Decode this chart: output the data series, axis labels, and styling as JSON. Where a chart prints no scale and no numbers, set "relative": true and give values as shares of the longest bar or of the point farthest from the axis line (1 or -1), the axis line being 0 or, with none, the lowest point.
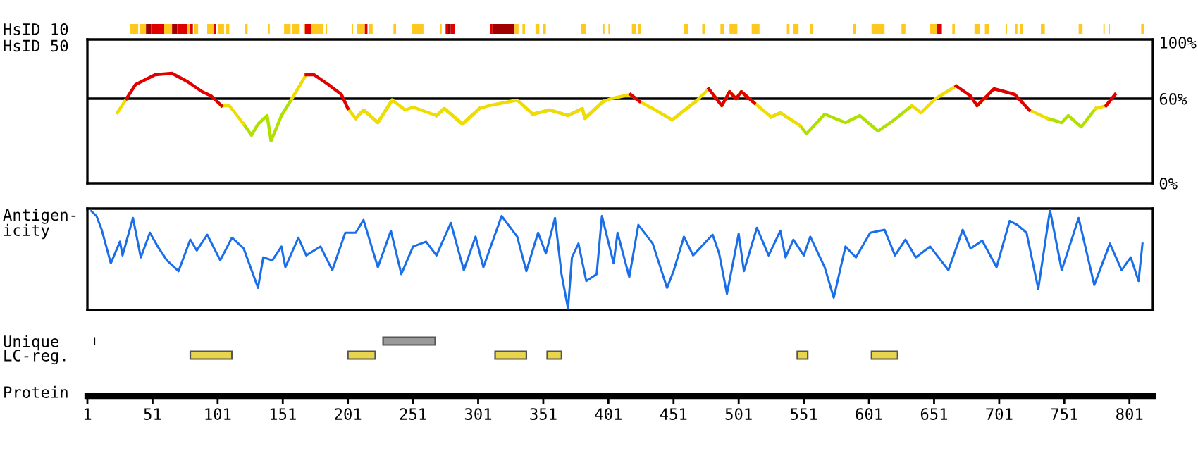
{
  "chart_data": [
    {
      "type": "bar",
      "orientation": "horizontal",
      "categories": [
        "HsID 10"
      ],
      "xlim": [
        1,
        819
      ],
      "tick_labels": "y",
      "series": [
        {
          "color": "#ffc81e",
          "base": [
            34
          ],
          "values": [
            6
          ]
        },
        {
          "color": "#ffc81e",
          "base": [
            41
          ],
          "values": [
            5
          ]
        },
        {
          "color": "#a00000",
          "base": [
            46
          ],
          "values": [
            4
          ]
        },
        {
          "color": "#e00000",
          "base": [
            50
          ],
          "values": [
            10
          ]
        },
        {
          "color": "#ffc81e",
          "base": [
            60
          ],
          "values": [
            6
          ]
        },
        {
          "color": "#a00000",
          "base": [
            66
          ],
          "values": [
            4
          ]
        },
        {
          "color": "#e00000",
          "base": [
            70
          ],
          "values": [
            8
          ]
        },
        {
          "color": "#ffc81e",
          "base": [
            78
          ],
          "values": [
            2
          ]
        },
        {
          "color": "#e00000",
          "base": [
            80
          ],
          "values": [
            2
          ]
        },
        {
          "color": "#ffc81e",
          "base": [
            83
          ],
          "values": [
            3
          ]
        },
        {
          "color": "#ffc81e",
          "base": [
            93
          ],
          "values": [
            5
          ]
        },
        {
          "color": "#e00000",
          "base": [
            98
          ],
          "values": [
            2
          ]
        },
        {
          "color": "#ffc81e",
          "base": [
            101
          ],
          "values": [
            5
          ]
        },
        {
          "color": "#ffc81e",
          "base": [
            107
          ],
          "values": [
            3
          ]
        },
        {
          "color": "#ffc81e",
          "base": [
            122
          ],
          "values": [
            2
          ]
        },
        {
          "color": "#ffc81e",
          "base": [
            140
          ],
          "values": [
            1
          ]
        },
        {
          "color": "#ffc81e",
          "base": [
            152
          ],
          "values": [
            5
          ]
        },
        {
          "color": "#ffc81e",
          "base": [
            158
          ],
          "values": [
            6
          ]
        },
        {
          "color": "#ffc81e",
          "base": [
            167
          ],
          "values": [
            1
          ]
        },
        {
          "color": "#e00000",
          "base": [
            168
          ],
          "values": [
            5
          ]
        },
        {
          "color": "#ffc81e",
          "base": [
            173
          ],
          "values": [
            9
          ]
        },
        {
          "color": "#ffc81e",
          "base": [
            184
          ],
          "values": [
            1
          ]
        },
        {
          "color": "#ffc81e",
          "base": [
            204
          ],
          "values": [
            1
          ]
        },
        {
          "color": "#ffc81e",
          "base": [
            208
          ],
          "values": [
            6
          ]
        },
        {
          "color": "#e00000",
          "base": [
            214
          ],
          "values": [
            2
          ]
        },
        {
          "color": "#ffc81e",
          "base": [
            217
          ],
          "values": [
            3
          ]
        },
        {
          "color": "#ffc81e",
          "base": [
            236
          ],
          "values": [
            2
          ]
        },
        {
          "color": "#ffc81e",
          "base": [
            250
          ],
          "values": [
            9
          ]
        },
        {
          "color": "#ffc81e",
          "base": [
            272
          ],
          "values": [
            1
          ]
        },
        {
          "color": "#e00000",
          "base": [
            276
          ],
          "values": [
            2
          ]
        },
        {
          "color": "#a00000",
          "base": [
            278
          ],
          "values": [
            2
          ]
        },
        {
          "color": "#e00000",
          "base": [
            280
          ],
          "values": [
            3
          ]
        },
        {
          "color": "#e00000",
          "base": [
            310
          ],
          "values": [
            2
          ]
        },
        {
          "color": "#a00000",
          "base": [
            312
          ],
          "values": [
            17
          ]
        },
        {
          "color": "#ffc81e",
          "base": [
            329
          ],
          "values": [
            3
          ]
        },
        {
          "color": "#ffc81e",
          "base": [
            335
          ],
          "values": [
            2
          ]
        },
        {
          "color": "#ffc81e",
          "base": [
            345
          ],
          "values": [
            3
          ]
        },
        {
          "color": "#ffc81e",
          "base": [
            351
          ],
          "values": [
            2
          ]
        },
        {
          "color": "#ffc81e",
          "base": [
            380
          ],
          "values": [
            4
          ]
        },
        {
          "color": "#ffc81e",
          "base": [
            397
          ],
          "values": [
            1
          ]
        },
        {
          "color": "#ffc81e",
          "base": [
            401
          ],
          "values": [
            1
          ]
        },
        {
          "color": "#ffc81e",
          "base": [
            419
          ],
          "values": [
            3
          ]
        },
        {
          "color": "#ffc81e",
          "base": [
            424
          ],
          "values": [
            2
          ]
        },
        {
          "color": "#ffc81e",
          "base": [
            459
          ],
          "values": [
            3
          ]
        },
        {
          "color": "#ffc81e",
          "base": [
            473
          ],
          "values": [
            2
          ]
        },
        {
          "color": "#ffc81e",
          "base": [
            487
          ],
          "values": [
            3
          ]
        },
        {
          "color": "#ffc81e",
          "base": [
            494
          ],
          "values": [
            6
          ]
        },
        {
          "color": "#ffc81e",
          "base": [
            511
          ],
          "values": [
            6
          ]
        },
        {
          "color": "#ffc81e",
          "base": [
            538
          ],
          "values": [
            2
          ]
        },
        {
          "color": "#ffc81e",
          "base": [
            543
          ],
          "values": [
            4
          ]
        },
        {
          "color": "#ffc81e",
          "base": [
            556
          ],
          "values": [
            2
          ]
        },
        {
          "color": "#ffc81e",
          "base": [
            589
          ],
          "values": [
            2
          ]
        },
        {
          "color": "#ffc81e",
          "base": [
            603
          ],
          "values": [
            10
          ]
        },
        {
          "color": "#ffc81e",
          "base": [
            626
          ],
          "values": [
            3
          ]
        },
        {
          "color": "#ffc81e",
          "base": [
            648
          ],
          "values": [
            5
          ]
        },
        {
          "color": "#e00000",
          "base": [
            653
          ],
          "values": [
            4
          ]
        },
        {
          "color": "#ffc81e",
          "base": [
            665
          ],
          "values": [
            2
          ]
        },
        {
          "color": "#ffc81e",
          "base": [
            682
          ],
          "values": [
            4
          ]
        },
        {
          "color": "#ffc81e",
          "base": [
            690
          ],
          "values": [
            3
          ]
        },
        {
          "color": "#ffc81e",
          "base": [
            706
          ],
          "values": [
            1
          ]
        },
        {
          "color": "#ffc81e",
          "base": [
            713
          ],
          "values": [
            2
          ]
        },
        {
          "color": "#ffc81e",
          "base": [
            717
          ],
          "values": [
            2
          ]
        },
        {
          "color": "#ffc81e",
          "base": [
            733
          ],
          "values": [
            3
          ]
        },
        {
          "color": "#ffc81e",
          "base": [
            762
          ],
          "values": [
            3
          ]
        },
        {
          "color": "#ffc81e",
          "base": [
            781
          ],
          "values": [
            1
          ]
        },
        {
          "color": "#ffc81e",
          "base": [
            785
          ],
          "values": [
            1
          ]
        },
        {
          "color": "#ffc81e",
          "base": [
            810
          ],
          "values": [
            2
          ]
        }
      ]
    },
    {
      "type": "line",
      "ylabel": "HsID 50",
      "xlim": [
        1,
        819
      ],
      "ylim": [
        0,
        102
      ],
      "yticks": [
        {
          "value": 0,
          "label": "0%"
        },
        {
          "value": 60,
          "label": "60%"
        },
        {
          "value": 100,
          "label": "100%"
        }
      ],
      "tick_labels": "y",
      "ref_lines": [
        {
          "axis": "y",
          "value": 60,
          "color": "#000000"
        }
      ],
      "x": [
        24,
        31,
        38,
        53,
        66,
        78,
        89,
        96,
        104,
        110,
        121,
        127,
        132,
        139,
        142,
        150,
        158,
        169,
        175,
        186,
        196,
        201,
        207,
        213,
        224,
        235,
        245,
        251,
        269,
        275,
        289,
        302,
        309,
        331,
        343,
        356,
        370,
        381,
        383,
        397,
        403,
        418,
        425,
        435,
        450,
        468,
        478,
        488,
        494,
        499,
        503,
        513,
        526,
        533,
        548,
        553,
        567,
        583,
        594,
        608,
        619,
        634,
        641,
        652,
        668,
        679,
        684,
        697,
        713,
        724,
        738,
        749,
        754,
        764,
        775,
        783,
        790
      ],
      "series": [
        {
          "color": "#e00000",
          "values": [
            null,
            60,
            70,
            77,
            78,
            72,
            65,
            62,
            55,
            null,
            null,
            null,
            null,
            null,
            null,
            null,
            null,
            77,
            77,
            70,
            63,
            53,
            null,
            null,
            null,
            null,
            null,
            null,
            null,
            null,
            null,
            null,
            null,
            null,
            null,
            null,
            null,
            null,
            null,
            null,
            null,
            63,
            58,
            null,
            null,
            null,
            67,
            55,
            65,
            60,
            65,
            57,
            null,
            null,
            null,
            null,
            null,
            null,
            null,
            null,
            null,
            null,
            null,
            null,
            69,
            62,
            55,
            67,
            63,
            52,
            null,
            null,
            null,
            null,
            null,
            55,
            63
          ]
        },
        {
          "color": "#f0dc00",
          "values": [
            50,
            60,
            null,
            null,
            null,
            null,
            null,
            null,
            55,
            55,
            42,
            null,
            null,
            null,
            null,
            null,
            60,
            77,
            null,
            null,
            null,
            53,
            46,
            52,
            43,
            59,
            52,
            54,
            48,
            53,
            42,
            53,
            55,
            59,
            49,
            52,
            48,
            53,
            46,
            58,
            60,
            63,
            58,
            53,
            45,
            58,
            67,
            55,
            65,
            60,
            65,
            57,
            47,
            50,
            41,
            null,
            null,
            null,
            null,
            null,
            null,
            55,
            50,
            60,
            69,
            null,
            55,
            67,
            null,
            52,
            46,
            null,
            null,
            null,
            53,
            55,
            null
          ]
        },
        {
          "color": "#b0e000",
          "values": [
            null,
            null,
            null,
            null,
            null,
            null,
            null,
            null,
            null,
            null,
            42,
            34,
            42,
            48,
            30,
            48,
            60,
            null,
            null,
            null,
            null,
            null,
            46,
            52,
            43,
            59,
            null,
            null,
            48,
            53,
            42,
            53,
            null,
            null,
            49,
            52,
            48,
            53,
            46,
            58,
            null,
            null,
            null,
            null,
            45,
            58,
            null,
            null,
            null,
            null,
            null,
            null,
            47,
            50,
            41,
            35,
            49,
            43,
            48,
            37,
            44,
            55,
            null,
            null,
            null,
            null,
            null,
            null,
            null,
            null,
            46,
            43,
            48,
            40,
            53,
            null,
            null
          ]
        }
      ]
    },
    {
      "type": "line",
      "ylabel": "Antigen-\nicity",
      "xlim": [
        1,
        819
      ],
      "relative": true,
      "tick_labels": false,
      "series": [
        {
          "color": "#1a6ee8",
          "x": [
            4,
            8,
            12,
            19,
            26,
            28,
            36,
            42,
            49,
            55,
            62,
            71,
            80,
            85,
            93,
            103,
            112,
            121,
            132,
            136,
            143,
            150,
            153,
            163,
            169,
            180,
            189,
            199,
            207,
            213,
            224,
            234,
            242,
            251,
            261,
            269,
            280,
            290,
            299,
            305,
            319,
            331,
            338,
            347,
            353,
            360,
            365,
            370,
            373,
            378,
            384,
            392,
            396,
            405,
            408,
            417,
            424,
            435,
            446,
            451,
            459,
            466,
            481,
            486,
            492,
            501,
            505,
            515,
            524,
            533,
            537,
            543,
            551,
            556,
            567,
            574,
            583,
            591,
            602,
            613,
            621,
            629,
            637,
            648,
            662,
            673,
            679,
            688,
            699,
            709,
            715,
            722,
            731,
            740,
            749,
            762,
            774,
            786,
            795,
            802,
            808,
            811
          ],
          "values": [
            0.99,
            0.94,
            0.8,
            0.46,
            0.68,
            0.54,
            0.92,
            0.52,
            0.77,
            0.63,
            0.49,
            0.38,
            0.7,
            0.59,
            0.75,
            0.49,
            0.72,
            0.61,
            0.21,
            0.52,
            0.49,
            0.63,
            0.42,
            0.72,
            0.54,
            0.63,
            0.39,
            0.77,
            0.77,
            0.9,
            0.42,
            0.79,
            0.35,
            0.63,
            0.68,
            0.54,
            0.87,
            0.39,
            0.73,
            0.42,
            0.94,
            0.73,
            0.38,
            0.77,
            0.56,
            0.92,
            0.35,
            0,
            0.52,
            0.66,
            0.28,
            0.35,
            0.94,
            0.46,
            0.77,
            0.32,
            0.85,
            0.66,
            0.21,
            0.38,
            0.73,
            0.54,
            0.75,
            0.56,
            0.15,
            0.76,
            0.38,
            0.82,
            0.54,
            0.79,
            0.52,
            0.7,
            0.54,
            0.73,
            0.42,
            0.11,
            0.63,
            0.52,
            0.77,
            0.8,
            0.54,
            0.7,
            0.52,
            0.63,
            0.39,
            0.8,
            0.61,
            0.69,
            0.42,
            0.89,
            0.85,
            0.77,
            0.2,
            1,
            0.39,
            0.92,
            0.24,
            0.66,
            0.39,
            0.52,
            0.28,
            0.66
          ]
        }
      ]
    },
    {
      "type": "bar",
      "orientation": "horizontal",
      "categories": [
        "Unique",
        "LC-reg."
      ],
      "xlabel": "Protein",
      "xlim": [
        1,
        819
      ],
      "xticks": [
        1,
        51,
        101,
        151,
        201,
        251,
        301,
        351,
        401,
        451,
        501,
        551,
        601,
        651,
        701,
        751,
        801
      ],
      "series": [
        {
          "color": "#000000",
          "base": [
            6,
            null
          ],
          "values": [
            1,
            null
          ]
        },
        {
          "color": "#999999",
          "base": [
            228,
            null
          ],
          "values": [
            40,
            null
          ]
        },
        {
          "color": "#e8d44d",
          "base": [
            null,
            80
          ],
          "values": [
            null,
            32
          ]
        },
        {
          "color": "#e8d44d",
          "base": [
            null,
            201
          ],
          "values": [
            null,
            21
          ]
        },
        {
          "color": "#e8d44d",
          "base": [
            null,
            314
          ],
          "values": [
            null,
            24
          ]
        },
        {
          "color": "#e8d44d",
          "base": [
            null,
            354
          ],
          "values": [
            null,
            11
          ]
        },
        {
          "color": "#e8d44d",
          "base": [
            null,
            546
          ],
          "values": [
            null,
            8
          ]
        },
        {
          "color": "#e8d44d",
          "base": [
            null,
            603
          ],
          "values": [
            null,
            20
          ]
        }
      ]
    }
  ]
}
